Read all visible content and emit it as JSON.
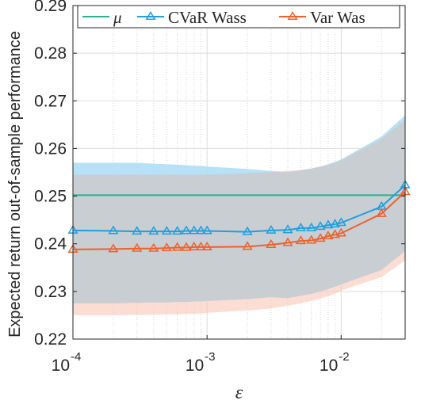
{
  "chart_data": {
    "type": "line",
    "xscale": "log",
    "xlim": [
      0.0001,
      0.03
    ],
    "ylim": [
      0.22,
      0.29
    ],
    "xlabel": "ε",
    "ylabel": "Expected return out-of-sample performance",
    "yticks": [
      0.22,
      0.23,
      0.24,
      0.25,
      0.26,
      0.27,
      0.28,
      0.29
    ],
    "ytick_labels": [
      "0.22",
      "0.23",
      "0.24",
      "0.25",
      "0.26",
      "0.27",
      "0.28",
      "0.29"
    ],
    "xticks": [
      0.0001,
      0.001,
      0.01
    ],
    "xtick_labels": [
      {
        "base": "10",
        "exp": "-4"
      },
      {
        "base": "10",
        "exp": "-3"
      },
      {
        "base": "10",
        "exp": "-2"
      }
    ],
    "grid": true,
    "legend_position": "top",
    "x": [
      0.0001,
      0.0002,
      0.0003,
      0.0004,
      0.0005,
      0.0006,
      0.0007,
      0.0008,
      0.0009,
      0.001,
      0.002,
      0.003,
      0.004,
      0.005,
      0.006,
      0.007,
      0.008,
      0.009,
      0.01,
      0.02,
      0.03
    ],
    "bands": [
      {
        "series": "CVaR Wass",
        "color": "#a9dcf5",
        "upper": [
          0.257,
          0.257,
          0.257,
          0.2568,
          0.2567,
          0.2566,
          0.2565,
          0.2564,
          0.2563,
          0.2562,
          0.2557,
          0.2553,
          0.2551,
          0.2554,
          0.2558,
          0.2562,
          0.2567,
          0.2572,
          0.2577,
          0.2625,
          0.267
        ],
        "lower": [
          0.2275,
          0.2275,
          0.2276,
          0.2277,
          0.2277,
          0.2278,
          0.2278,
          0.2279,
          0.2279,
          0.228,
          0.2284,
          0.2288,
          0.2286,
          0.2291,
          0.2295,
          0.23,
          0.2305,
          0.231,
          0.2315,
          0.2345,
          0.2385
        ]
      },
      {
        "series": "Var Was",
        "color": "#f9c7b8",
        "upper": [
          0.2545,
          0.2545,
          0.2545,
          0.2545,
          0.2545,
          0.2545,
          0.2545,
          0.2545,
          0.2545,
          0.2545,
          0.2548,
          0.255,
          0.2553,
          0.2555,
          0.2558,
          0.2562,
          0.2566,
          0.257,
          0.2575,
          0.262,
          0.266
        ],
        "lower": [
          0.225,
          0.225,
          0.2251,
          0.2251,
          0.2252,
          0.2252,
          0.2253,
          0.2253,
          0.2254,
          0.2255,
          0.226,
          0.2264,
          0.227,
          0.2275,
          0.228,
          0.2285,
          0.229,
          0.2295,
          0.2302,
          0.233,
          0.2365
        ]
      }
    ],
    "series": [
      {
        "name": "μ",
        "color": "#2bb08c",
        "marker": "none",
        "values": [
          0.2502,
          0.2502,
          0.2502,
          0.2502,
          0.2502,
          0.2502,
          0.2502,
          0.2502,
          0.2502,
          0.2502,
          0.2502,
          0.2502,
          0.2502,
          0.2502,
          0.2502,
          0.2502,
          0.2502,
          0.2502,
          0.2502,
          0.2502,
          0.2502
        ]
      },
      {
        "name": "CVaR Wass",
        "color": "#1e9fe0",
        "marker": "triangle",
        "values": [
          0.2428,
          0.2427,
          0.2426,
          0.2426,
          0.2426,
          0.2426,
          0.2427,
          0.2427,
          0.2427,
          0.2427,
          0.2425,
          0.2428,
          0.2429,
          0.2433,
          0.2433,
          0.2436,
          0.2439,
          0.2441,
          0.2444,
          0.2478,
          0.2523
        ]
      },
      {
        "name": "Var Was",
        "color": "#f0602c",
        "marker": "triangle",
        "values": [
          0.2388,
          0.2389,
          0.239,
          0.239,
          0.2391,
          0.2392,
          0.2392,
          0.2393,
          0.2393,
          0.2393,
          0.2394,
          0.2398,
          0.2402,
          0.2406,
          0.2407,
          0.2411,
          0.2416,
          0.2419,
          0.2422,
          0.2463,
          0.2509
        ]
      }
    ]
  }
}
